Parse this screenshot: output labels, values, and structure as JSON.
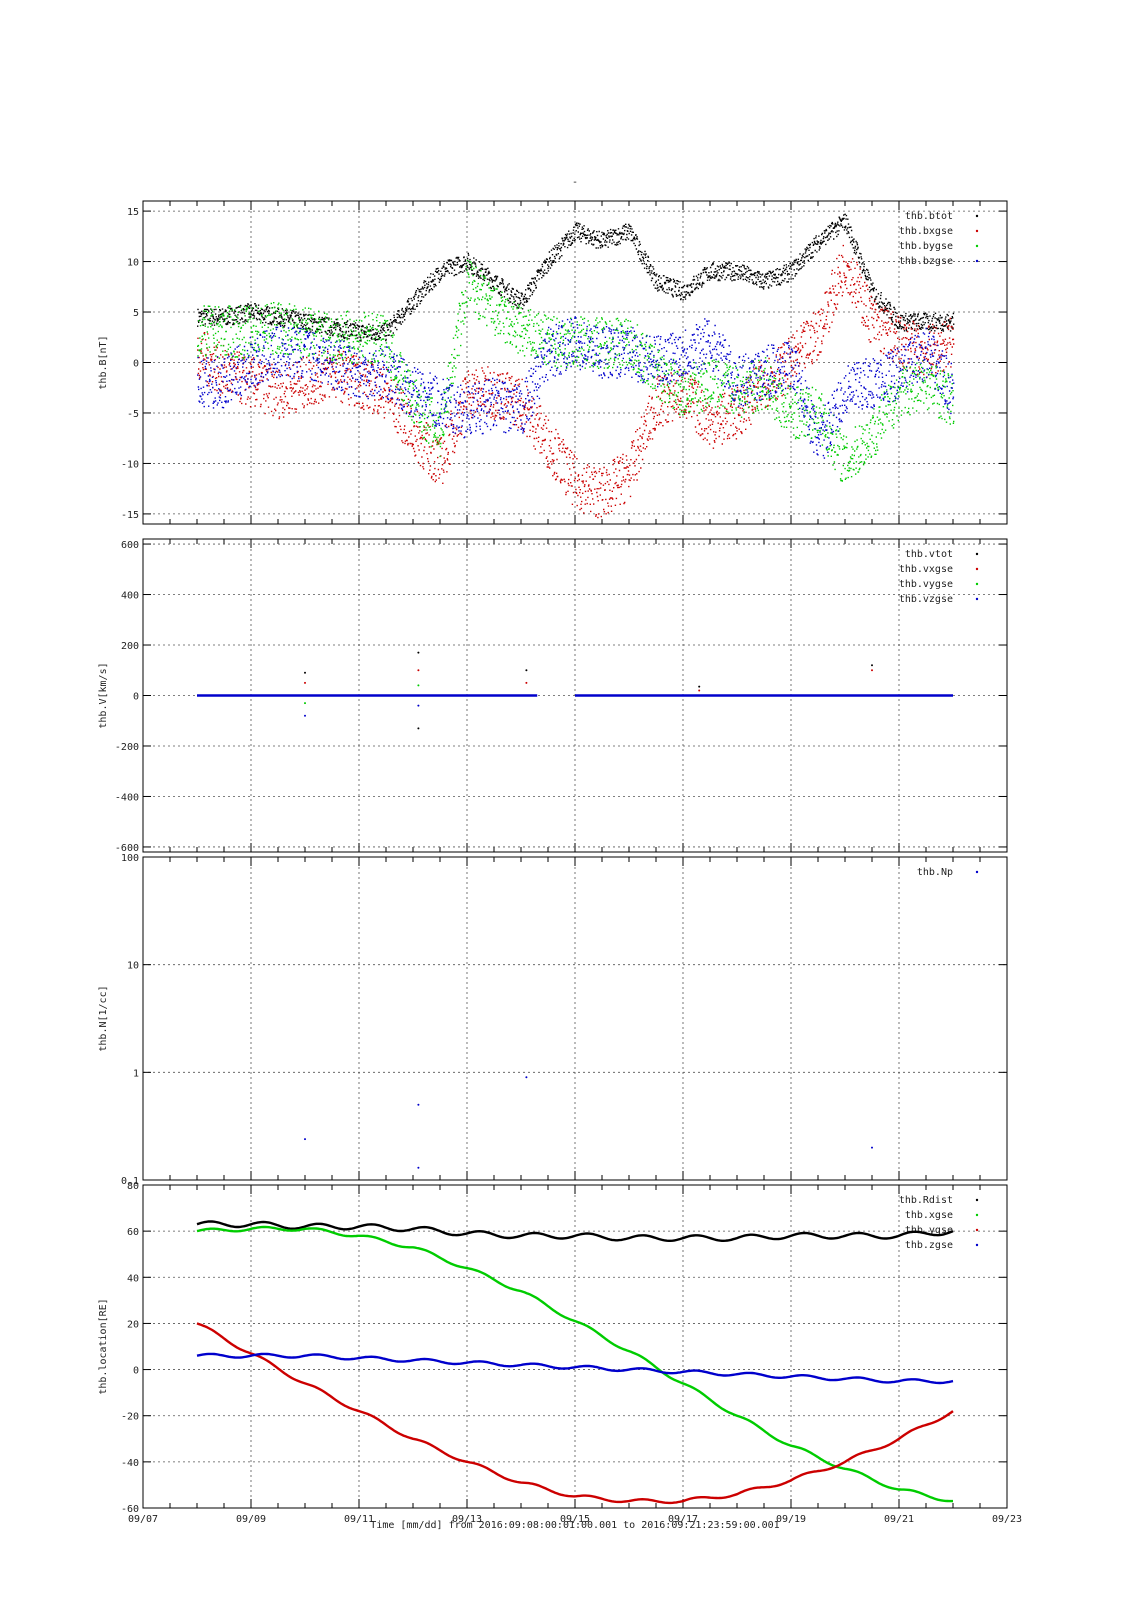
{
  "figure": {
    "title": "-",
    "caption": "Time [mm/dd]  from 2016:09:08:00:01:00.001  to  2016:09:21:23:59:00.001"
  },
  "x_axis": {
    "start_day": "09/07",
    "end_day": "09/23",
    "tick_labels": [
      "09/07",
      "09/09",
      "09/11",
      "09/13",
      "09/15",
      "09/17",
      "09/19",
      "09/21",
      "09/23"
    ]
  },
  "chart_data": [
    {
      "type": "scatter",
      "ylabel": "thb.B[nT]",
      "xlim": [
        "09/07",
        "09/23"
      ],
      "ylim": [
        -16,
        16
      ],
      "yticks": [
        -15,
        -10,
        -5,
        0,
        5,
        10,
        15
      ],
      "grid": true,
      "legend": "top-right",
      "x": [
        "09/08",
        "09/08.5",
        "09/09",
        "09/09.5",
        "09/10",
        "09/10.5",
        "09/11",
        "09/11.5",
        "09/12",
        "09/12.5",
        "09/13",
        "09/13.5",
        "09/14",
        "09/14.5",
        "09/15",
        "09/15.5",
        "09/16",
        "09/16.5",
        "09/17",
        "09/17.5",
        "09/18",
        "09/18.5",
        "09/19",
        "09/19.5",
        "09/20",
        "09/20.5",
        "09/21",
        "09/21.5",
        "09/22"
      ],
      "series": [
        {
          "name": "thb.btot",
          "color": "#000000",
          "values": [
            4.5,
            4.5,
            5,
            4.5,
            4,
            3.5,
            3,
            3,
            6,
            9,
            10,
            8,
            6,
            10,
            13,
            12,
            13,
            8,
            7,
            9,
            9,
            8,
            9,
            12,
            14,
            7,
            4,
            4,
            4
          ]
        },
        {
          "name": "thb.bxgse",
          "color": "#cc0000",
          "values": [
            1,
            -1,
            -2,
            -3,
            -2,
            -1,
            -2,
            -3,
            -7,
            -10,
            -3,
            -3,
            -4,
            -8,
            -12,
            -13,
            -11,
            -4,
            -3,
            -6,
            -5,
            -2,
            0,
            3,
            10,
            4,
            2,
            1,
            2
          ]
        },
        {
          "name": "thb.bygse",
          "color": "#00cc00",
          "values": [
            3,
            3,
            3,
            3.5,
            3,
            2.5,
            2.5,
            2,
            -4,
            -7,
            8,
            5,
            3,
            2,
            2,
            2,
            2,
            -1,
            -3,
            -2,
            -3,
            -2,
            -5,
            -5,
            -10,
            -7,
            -3,
            -2,
            -4
          ]
        },
        {
          "name": "thb.bzgse",
          "color": "#0000cc",
          "values": [
            -2,
            -2,
            0,
            1,
            1,
            0,
            -1,
            -1,
            -3,
            -4,
            -5,
            -4,
            -5,
            1,
            2,
            1,
            1,
            0,
            1,
            2,
            -2,
            -1,
            0,
            -8,
            -3,
            -2,
            -1,
            1,
            -3
          ]
        }
      ]
    },
    {
      "type": "scatter",
      "ylabel": "thb.V[km/s]",
      "xlim": [
        "09/07",
        "09/23"
      ],
      "ylim": [
        -620,
        620
      ],
      "yticks": [
        -600,
        -400,
        -200,
        0,
        200,
        400,
        600
      ],
      "grid": true,
      "legend": "top-right",
      "segments": [
        [
          "09/08",
          "09/14.3"
        ],
        [
          "09/15",
          "09/22"
        ]
      ],
      "baseline": 0,
      "spikes": [
        {
          "day": "09/10",
          "values": [
            90,
            50,
            -30,
            -80
          ]
        },
        {
          "day": "09/12.1",
          "values": [
            170,
            100,
            40,
            -40,
            -130
          ]
        },
        {
          "day": "09/14.1",
          "values": [
            100,
            50
          ]
        },
        {
          "day": "09/17.3",
          "values": [
            35,
            20
          ]
        },
        {
          "day": "09/20.5",
          "values": [
            120,
            100
          ]
        }
      ],
      "series": [
        {
          "name": "thb.vtot",
          "color": "#000000"
        },
        {
          "name": "thb.vxgse",
          "color": "#cc0000"
        },
        {
          "name": "thb.vygse",
          "color": "#00cc00"
        },
        {
          "name": "thb.vzgse",
          "color": "#0000cc"
        }
      ]
    },
    {
      "type": "scatter",
      "ylabel": "thb.N[1/cc]",
      "xlim": [
        "09/07",
        "09/23"
      ],
      "ylim": [
        0.1,
        100
      ],
      "yscale": "log",
      "yticks": [
        0.1,
        1,
        10,
        100
      ],
      "ytick_labels": [
        "0.1",
        "1",
        "10",
        "100"
      ],
      "grid": true,
      "legend": "top-right",
      "series": [
        {
          "name": "thb.Np",
          "color": "#0000cc",
          "points": [
            [
              "09/10",
              0.24
            ],
            [
              "09/12.1",
              0.5
            ],
            [
              "09/12.1",
              0.13
            ],
            [
              "09/14.1",
              0.9
            ],
            [
              "09/20.5",
              0.2
            ]
          ]
        }
      ]
    },
    {
      "type": "line",
      "ylabel": "thb.location[RE]",
      "xlim": [
        "09/07",
        "09/23"
      ],
      "ylim": [
        -60,
        80
      ],
      "yticks": [
        -60,
        -40,
        -20,
        0,
        20,
        40,
        60,
        80
      ],
      "grid": true,
      "legend": "top-right",
      "x": [
        "09/08",
        "09/09",
        "09/10",
        "09/11",
        "09/12",
        "09/13",
        "09/14",
        "09/15",
        "09/16",
        "09/17",
        "09/18",
        "09/19",
        "09/20",
        "09/21",
        "09/22"
      ],
      "series": [
        {
          "name": "thb.Rdist",
          "color": "#000000",
          "values": [
            63,
            63,
            62,
            62,
            61,
            59,
            58,
            58,
            57,
            57,
            57,
            58,
            58,
            58,
            60
          ]
        },
        {
          "name": "thb.xgse",
          "color": "#00cc00",
          "values": [
            60,
            61,
            61,
            58,
            53,
            44,
            34,
            21,
            8,
            -6,
            -20,
            -33,
            -43,
            -52,
            -57
          ]
        },
        {
          "name": "thb.ygse",
          "color": "#cc0000",
          "values": [
            20,
            7,
            -6,
            -18,
            -30,
            -40,
            -49,
            -55,
            -57,
            -57,
            -54,
            -48,
            -40,
            -30,
            -18
          ]
        },
        {
          "name": "thb.zgse",
          "color": "#0000cc",
          "values": [
            6,
            6,
            6,
            5,
            4,
            3,
            2,
            1,
            0,
            -1,
            -2,
            -3,
            -4,
            -5,
            -5
          ]
        }
      ]
    }
  ]
}
